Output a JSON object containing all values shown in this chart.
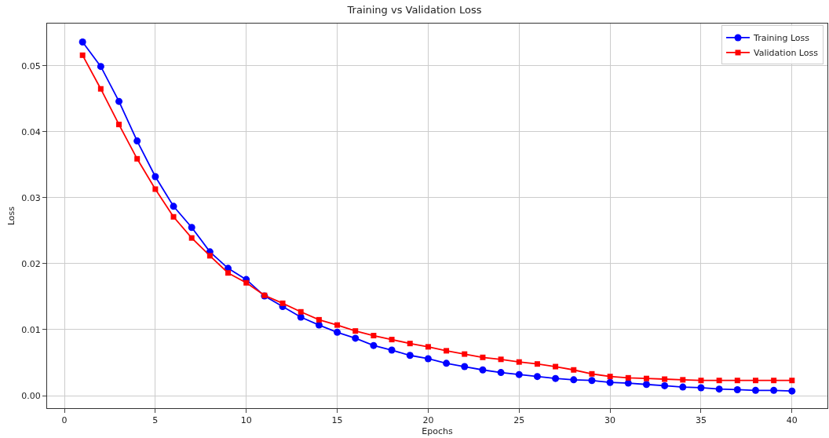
{
  "chart_data": {
    "type": "line",
    "title": "Training vs Validation Loss",
    "xlabel": "Epochs",
    "ylabel": "Loss",
    "x": [
      1,
      2,
      3,
      4,
      5,
      6,
      7,
      8,
      9,
      10,
      11,
      12,
      13,
      14,
      15,
      16,
      17,
      18,
      19,
      20,
      21,
      22,
      23,
      24,
      25,
      26,
      27,
      28,
      29,
      30,
      31,
      32,
      33,
      34,
      35,
      36,
      37,
      38,
      39,
      40
    ],
    "series": [
      {
        "name": "Training Loss",
        "color": "#0000ff",
        "marker": "circle",
        "values": [
          0.0536,
          0.0499,
          0.0446,
          0.0386,
          0.0332,
          0.0287,
          0.0255,
          0.0218,
          0.0193,
          0.0176,
          0.0151,
          0.0135,
          0.0119,
          0.0107,
          0.0096,
          0.0087,
          0.0076,
          0.0069,
          0.0061,
          0.0056,
          0.0049,
          0.0044,
          0.0039,
          0.0035,
          0.0032,
          0.0029,
          0.0026,
          0.0024,
          0.0023,
          0.002,
          0.0019,
          0.0017,
          0.0015,
          0.0013,
          0.0012,
          0.001,
          0.0009,
          0.0008,
          0.0008,
          0.0007
        ]
      },
      {
        "name": "Validation Loss",
        "color": "#ff0000",
        "marker": "square",
        "values": [
          0.0516,
          0.0465,
          0.0411,
          0.0359,
          0.0313,
          0.0271,
          0.0239,
          0.0212,
          0.0186,
          0.0171,
          0.0152,
          0.014,
          0.0127,
          0.0115,
          0.0107,
          0.0098,
          0.0091,
          0.0085,
          0.0079,
          0.0074,
          0.0068,
          0.0063,
          0.0058,
          0.0055,
          0.0051,
          0.0048,
          0.0044,
          0.0039,
          0.0033,
          0.0029,
          0.0027,
          0.0026,
          0.0025,
          0.0024,
          0.0023,
          0.0023,
          0.0023,
          0.0023,
          0.0023,
          0.0023
        ]
      }
    ],
    "xlim": [
      -0.95,
      41.95
    ],
    "xticks": [
      0,
      5,
      10,
      15,
      20,
      25,
      30,
      35,
      40
    ],
    "ylim": [
      -0.0019,
      0.0564
    ],
    "yticks": [
      {
        "value": 0,
        "label": "0.00"
      },
      {
        "value": 0.01,
        "label": "0.01"
      },
      {
        "value": 0.02,
        "label": "0.02"
      },
      {
        "value": 0.03,
        "label": "0.03"
      },
      {
        "value": 0.04,
        "label": "0.04"
      },
      {
        "value": 0.05,
        "label": "0.05"
      }
    ],
    "grid": true,
    "legend": "top right",
    "line_style": "solid"
  }
}
